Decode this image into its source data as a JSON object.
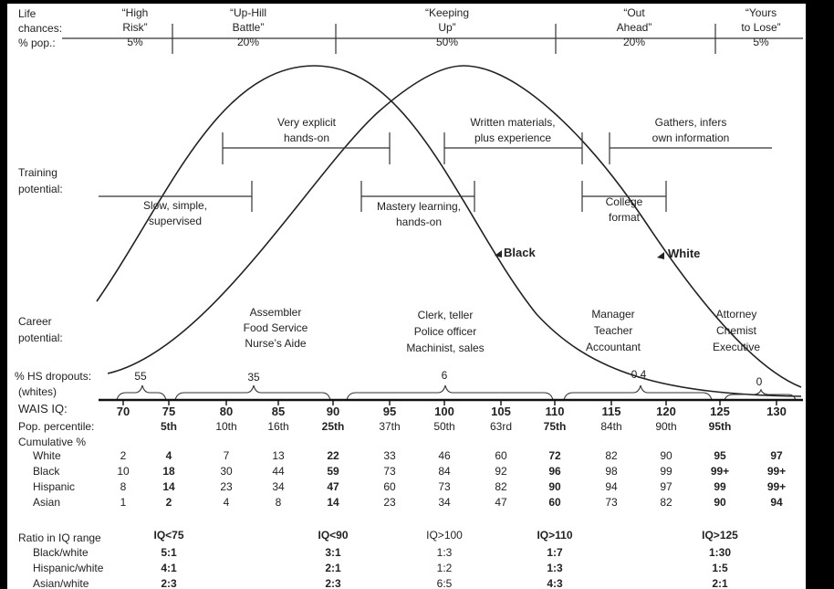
{
  "life": {
    "labels": [
      "Life",
      "chances:",
      "% pop.:"
    ],
    "cols": [
      {
        "l1": "“High",
        "l2": "Risk”",
        "pct": "5%"
      },
      {
        "l1": "“Up-Hill",
        "l2": "Battle”",
        "pct": "20%"
      },
      {
        "l1": "“Keeping",
        "l2": "Up”",
        "pct": "50%"
      },
      {
        "l1": "“Out",
        "l2": "Ahead”",
        "pct": "20%"
      },
      {
        "l1": "“Yours",
        "l2": "to Lose”",
        "pct": "5%"
      }
    ]
  },
  "training": {
    "labels": [
      "Training",
      "potential:"
    ],
    "items": [
      {
        "l1": "Very explicit",
        "l2": "hands-on"
      },
      {
        "l1": "Written materials,",
        "l2": "plus experience"
      },
      {
        "l1": "Gathers, infers",
        "l2": "own information"
      },
      {
        "l1": "Slow, simple,",
        "l2": "supervised"
      },
      {
        "l1": "Mastery learning,",
        "l2": "hands-on"
      },
      {
        "l1": "College",
        "l2": "format"
      }
    ]
  },
  "curves": {
    "black": "Black",
    "white": "White"
  },
  "career": {
    "labels": [
      "Career",
      "potential:"
    ],
    "groups": [
      [
        "Assembler",
        "Food Service",
        "Nurse’s Aide"
      ],
      [
        "Clerk, teller",
        "Police officer",
        "Machinist, sales"
      ],
      [
        "Manager",
        "Teacher",
        "Accountant"
      ],
      [
        "Attorney",
        "Chemist",
        "Executive"
      ]
    ]
  },
  "dropouts": {
    "l1": "% HS dropouts:",
    "l2": "(whites)",
    "values": [
      "55",
      "35",
      "6",
      "0.4",
      "0"
    ]
  },
  "wais": {
    "label": "WAIS IQ:",
    "values": [
      "70",
      "75",
      "80",
      "85",
      "90",
      "95",
      "100",
      "105",
      "110",
      "115",
      "120",
      "125",
      "130"
    ]
  },
  "percentile": {
    "label": "Pop. percentile:",
    "values": [
      "5th",
      "10th",
      "16th",
      "25th",
      "37th",
      "50th",
      "63rd",
      "75th",
      "84th",
      "90th",
      "95th"
    ]
  },
  "cumulative": {
    "label": "Cumulative %",
    "rows": [
      {
        "name": "White",
        "values": [
          "2",
          "4",
          "7",
          "13",
          "22",
          "33",
          "46",
          "60",
          "72",
          "82",
          "90",
          "95",
          "97"
        ]
      },
      {
        "name": "Black",
        "values": [
          "10",
          "18",
          "30",
          "44",
          "59",
          "73",
          "84",
          "92",
          "96",
          "98",
          "99",
          "99+",
          "99+"
        ]
      },
      {
        "name": "Hispanic",
        "values": [
          "8",
          "14",
          "23",
          "34",
          "47",
          "60",
          "73",
          "82",
          "90",
          "94",
          "97",
          "99",
          "99+"
        ]
      },
      {
        "name": "Asian",
        "values": [
          "1",
          "2",
          "4",
          "8",
          "14",
          "23",
          "34",
          "47",
          "60",
          "73",
          "82",
          "90",
          "94"
        ]
      }
    ]
  },
  "ratio": {
    "label": "Ratio in IQ range",
    "headers": [
      "IQ<75",
      "IQ<90",
      "IQ>100",
      "IQ>110",
      "IQ>125"
    ],
    "rows": [
      {
        "name": "Black/white",
        "values": [
          "5:1",
          "3:1",
          "1:3",
          "1:7",
          "1:30"
        ]
      },
      {
        "name": "Hispanic/white",
        "values": [
          "4:1",
          "2:1",
          "1:2",
          "1:3",
          "1:5"
        ]
      },
      {
        "name": "Asian/white",
        "values": [
          "2:3",
          "2:3",
          "6:5",
          "4:3",
          "2:1"
        ]
      }
    ]
  }
}
